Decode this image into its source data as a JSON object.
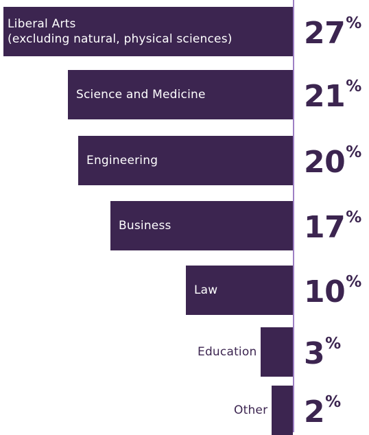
{
  "chart_data": {
    "type": "bar",
    "orientation": "horizontal",
    "categories": [
      "Liberal Arts",
      "Science and Medicine",
      "Engineering",
      "Business",
      "Law",
      "Education",
      "Other"
    ],
    "category_notes": [
      "(excluding natural, physical sciences)",
      "",
      "",
      "",
      "",
      "",
      ""
    ],
    "values": [
      27,
      21,
      20,
      17,
      10,
      3,
      2
    ],
    "value_labels": [
      "27",
      "21",
      "20",
      "17",
      "10",
      "3",
      "2"
    ],
    "value_suffix": "%",
    "xlim": [
      0,
      30
    ],
    "grid": false,
    "legend": "none",
    "colors": {
      "bar": "#3c2550",
      "axis": "#9d7fc4",
      "label_inside": "#ffffff"
    }
  }
}
